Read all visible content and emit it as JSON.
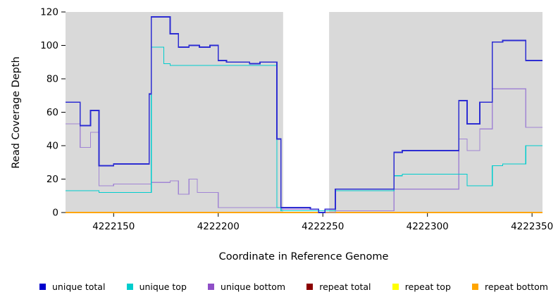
{
  "chart_data": {
    "type": "line",
    "step": true,
    "title": "",
    "xlabel": "Coordinate in Reference Genome",
    "ylabel": "Read Coverage Depth",
    "xlim": [
      4222127,
      4222355
    ],
    "ylim": [
      0,
      120
    ],
    "x_ticks": [
      4222150,
      4222200,
      4222250,
      4222300,
      4222350
    ],
    "y_ticks": [
      0,
      20,
      40,
      60,
      80,
      100,
      120
    ],
    "plot_bg": "#d9d9d9",
    "grid": false,
    "legend_position": "bottom",
    "gap_region": {
      "x1": 4222231,
      "x2": 4222253,
      "color": "#ffffff"
    },
    "series": [
      {
        "name": "repeat total",
        "color": "#8b0000",
        "width": 1.2,
        "points": [
          [
            4222127,
            0
          ],
          [
            4222355,
            0
          ]
        ]
      },
      {
        "name": "repeat top",
        "color": "#ffff00",
        "width": 1.2,
        "points": [
          [
            4222127,
            0
          ],
          [
            4222355,
            0
          ]
        ]
      },
      {
        "name": "repeat bottom",
        "color": "#ffa500",
        "width": 1.6,
        "points": [
          [
            4222127,
            0
          ],
          [
            4222355,
            0
          ]
        ]
      },
      {
        "name": "unique bottom",
        "color": "#a185d4",
        "width": 1.2,
        "points": [
          [
            4222127,
            53
          ],
          [
            4222134,
            39
          ],
          [
            4222139,
            48
          ],
          [
            4222143,
            16
          ],
          [
            4222150,
            17
          ],
          [
            4222168,
            18
          ],
          [
            4222177,
            19
          ],
          [
            4222181,
            11
          ],
          [
            4222186,
            20
          ],
          [
            4222190,
            12
          ],
          [
            4222200,
            3
          ],
          [
            4222230,
            2
          ],
          [
            4222248,
            0
          ],
          [
            4222256,
            1
          ],
          [
            4222284,
            14
          ],
          [
            4222315,
            44
          ],
          [
            4222319,
            37
          ],
          [
            4222325,
            50
          ],
          [
            4222331,
            74
          ],
          [
            4222347,
            51
          ],
          [
            4222355,
            51
          ]
        ]
      },
      {
        "name": "unique top",
        "color": "#00cdcd",
        "width": 1.2,
        "points": [
          [
            4222127,
            13
          ],
          [
            4222143,
            12
          ],
          [
            4222168,
            99
          ],
          [
            4222174,
            89
          ],
          [
            4222177,
            88
          ],
          [
            4222228,
            3
          ],
          [
            4222230,
            1
          ],
          [
            4222256,
            13
          ],
          [
            4222284,
            22
          ],
          [
            4222288,
            23
          ],
          [
            4222315,
            23
          ],
          [
            4222319,
            16
          ],
          [
            4222331,
            28
          ],
          [
            4222336,
            29
          ],
          [
            4222347,
            40
          ],
          [
            4222355,
            40
          ]
        ]
      },
      {
        "name": "unique total",
        "color": "#2d2dd2",
        "width": 1.8,
        "points": [
          [
            4222127,
            66
          ],
          [
            4222134,
            52
          ],
          [
            4222139,
            61
          ],
          [
            4222143,
            28
          ],
          [
            4222150,
            29
          ],
          [
            4222167,
            71
          ],
          [
            4222168,
            117
          ],
          [
            4222177,
            107
          ],
          [
            4222181,
            99
          ],
          [
            4222186,
            100
          ],
          [
            4222191,
            99
          ],
          [
            4222196,
            100
          ],
          [
            4222200,
            91
          ],
          [
            4222204,
            90
          ],
          [
            4222215,
            89
          ],
          [
            4222220,
            90
          ],
          [
            4222228,
            44
          ],
          [
            4222230,
            3
          ],
          [
            4222244,
            2
          ],
          [
            4222248,
            0
          ],
          [
            4222251,
            2
          ],
          [
            4222256,
            14
          ],
          [
            4222284,
            36
          ],
          [
            4222288,
            37
          ],
          [
            4222315,
            67
          ],
          [
            4222319,
            53
          ],
          [
            4222325,
            66
          ],
          [
            4222331,
            102
          ],
          [
            4222336,
            103
          ],
          [
            4222347,
            91
          ],
          [
            4222355,
            91
          ]
        ]
      }
    ],
    "legend": [
      {
        "label": "unique total",
        "color": "#0000cd"
      },
      {
        "label": "unique top",
        "color": "#00cdcd"
      },
      {
        "label": "unique bottom",
        "color": "#8f4fc7"
      },
      {
        "label": "repeat total",
        "color": "#8b0000"
      },
      {
        "label": "repeat top",
        "color": "#ffff00"
      },
      {
        "label": "repeat bottom",
        "color": "#ffa500"
      }
    ]
  }
}
